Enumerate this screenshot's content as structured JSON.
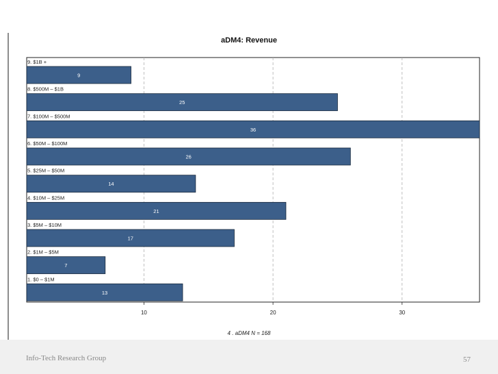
{
  "chart_data": {
    "type": "bar",
    "orientation": "horizontal",
    "title": "aDM4: Revenue",
    "categories": [
      "9. $1B +",
      "8. $500M – $1B",
      "7. $100M – $500M",
      "6. $50M – $100M",
      "5. $25M – $50M",
      "4. $10M – $25M",
      "3. $5M – $10M",
      "2. $1M – $5M",
      "1. $0 – $1M"
    ],
    "values": [
      9,
      25,
      36,
      26,
      14,
      21,
      17,
      7,
      13
    ],
    "xticks": [
      "10",
      "20",
      "30"
    ],
    "xlim": [
      0,
      36
    ],
    "grid": "dashed vertical",
    "bar_color": "#3c5f8a",
    "caption": "4 .  aDM4   N = 168"
  },
  "footer": {
    "left": "Info-Tech Research Group",
    "page_number": "57"
  }
}
